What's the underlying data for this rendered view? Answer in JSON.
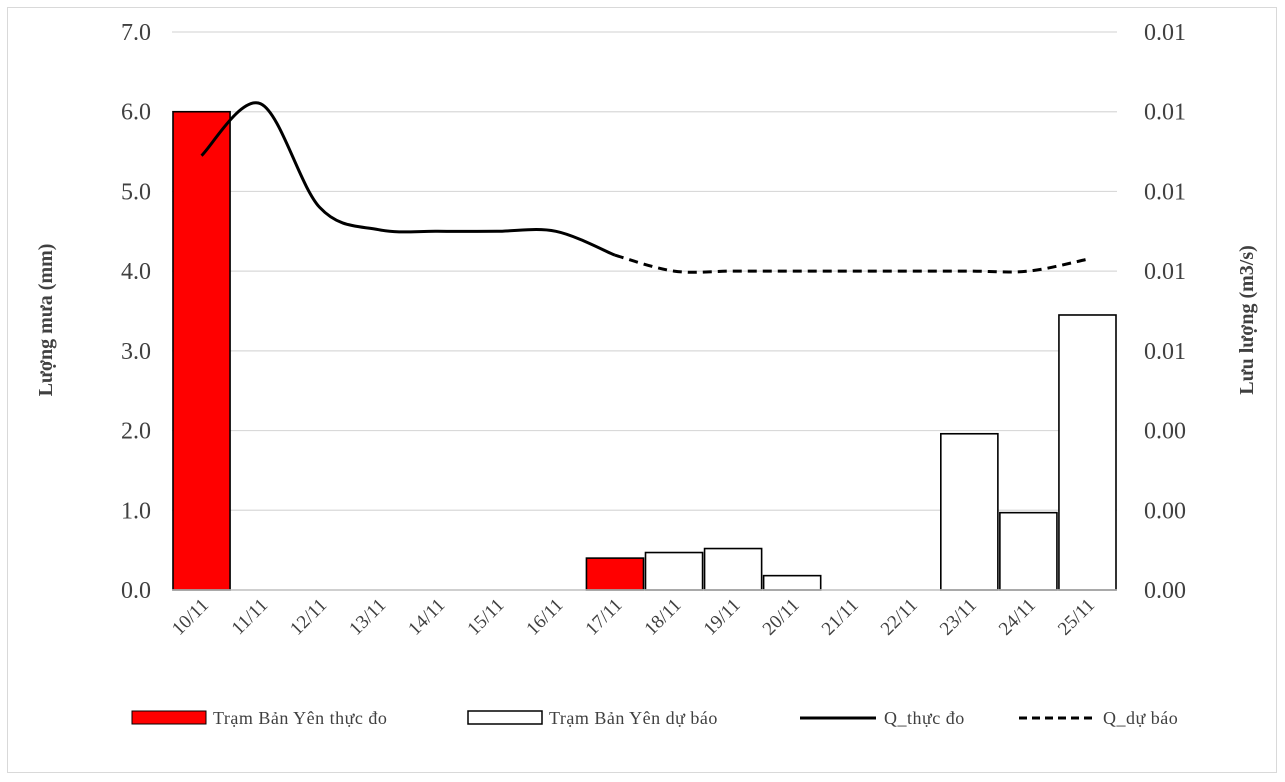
{
  "chart_data": {
    "type": "bar",
    "categories": [
      "10/11",
      "11/11",
      "12/11",
      "13/11",
      "14/11",
      "15/11",
      "16/11",
      "17/11",
      "18/11",
      "19/11",
      "20/11",
      "21/11",
      "22/11",
      "23/11",
      "24/11",
      "25/11"
    ],
    "series": [
      {
        "name": "Trạm Bản Yên thực đo",
        "kind": "bar",
        "axis": "left",
        "color": "#ff0000",
        "values": [
          6.0,
          null,
          null,
          null,
          null,
          null,
          null,
          0.4,
          null,
          null,
          null,
          null,
          null,
          null,
          null,
          null
        ]
      },
      {
        "name": "Trạm Bản Yên dự báo",
        "kind": "bar",
        "axis": "left",
        "color": "#ffffff",
        "values": [
          null,
          null,
          null,
          null,
          null,
          null,
          null,
          null,
          0.47,
          0.52,
          0.18,
          null,
          null,
          1.96,
          0.97,
          3.45
        ]
      },
      {
        "name": "Q_thực đo",
        "kind": "line",
        "axis": "right",
        "dash": "solid",
        "color": "#000000",
        "values": [
          5.45,
          6.1,
          4.8,
          4.52,
          4.5,
          4.5,
          4.5,
          4.2,
          null,
          null,
          null,
          null,
          null,
          null,
          null,
          null
        ]
      },
      {
        "name": "Q_dự báo",
        "kind": "line",
        "axis": "right",
        "dash": "dashed",
        "color": "#000000",
        "values": [
          null,
          null,
          null,
          null,
          null,
          null,
          null,
          4.2,
          4.0,
          4.0,
          4.0,
          4.0,
          4.0,
          4.0,
          4.0,
          4.15
        ]
      }
    ],
    "ylabel": "Lượng mưa (mm)",
    "y2label": "Lưu lượng (m3/s)",
    "ylim": [
      0,
      7
    ],
    "yticks": [
      "0.0",
      "1.0",
      "2.0",
      "3.0",
      "4.0",
      "5.0",
      "6.0",
      "7.0"
    ],
    "y2ticks": [
      "0.00",
      "0.00",
      "0.00",
      "0.01",
      "0.01",
      "0.01",
      "0.01",
      "0.01"
    ],
    "grid": true,
    "legend_position": "bottom"
  }
}
